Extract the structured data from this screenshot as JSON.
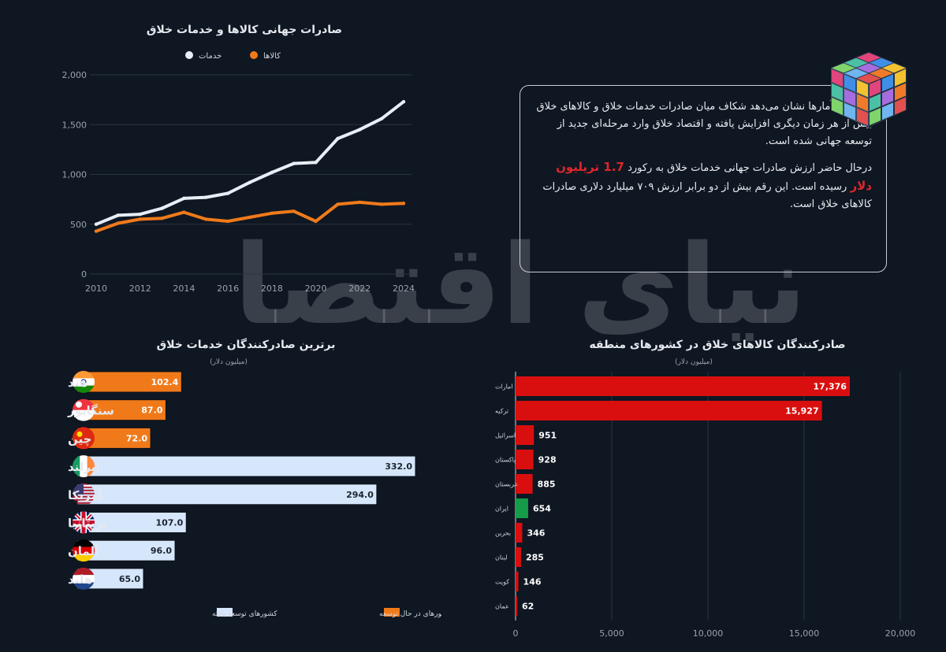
{
  "line_chart": {
    "title": "صادرات جهانی کالاها و خدمات خلاق",
    "legend": [
      {
        "label": "خدمات",
        "color": "#e8eef6"
      },
      {
        "label": "کالاها",
        "color": "#f07a1a"
      }
    ]
  },
  "info": {
    "para1": "تازه‌ترین آمارها نشان می‌دهد شکاف میان صادرات خدمات خلاق و کالاهای خلاق بیش از هر زمان دیگری افزایش یافته و اقتصاد خلاق وارد مرحله‌ای جدید از توسعه جهانی شده است.",
    "para2_a": "درحال حاضر ارزش صادرات جهانی خدمات خلاق به رکورد",
    "para2_highlight": "1.7 تریلیون دلار",
    "para2_b": "رسیده است. این رقم بیش از دو برابر ارزش ۷۰۹ میلیارد دلاری صادرات کالاهای خلاق است."
  },
  "watermark": {
    "text": "دنیای اقتصاد"
  },
  "services_chart": {
    "title": "برترین صادرکنندگان خدمات خلاق",
    "subtitle": "(میلیون دلار)",
    "legend": [
      {
        "label": "کشورهای در حال توسعه",
        "color": "#f07a1a"
      },
      {
        "label": "کشورهای توسعه یافته",
        "color": "#d6e6fb"
      }
    ]
  },
  "goods_chart": {
    "title": "صادرکنندگان کالاهای خلاق در کشورهای منطقه",
    "subtitle": "(میلیون دلار)"
  },
  "colors": {
    "developing": "#f07a1a",
    "developed": "#d6e6fb",
    "red": "#d90f0f",
    "iran": "#169c48",
    "axis": "#9aa3ad",
    "grid": "#2a3442"
  },
  "chart_data": [
    {
      "type": "line",
      "title": "صادرات جهانی کالاها و خدمات خلاق",
      "x": [
        2010,
        2011,
        2012,
        2013,
        2014,
        2015,
        2016,
        2017,
        2018,
        2019,
        2020,
        2021,
        2022,
        2023,
        2024
      ],
      "series": [
        {
          "name": "خدمات",
          "values": [
            500,
            590,
            600,
            660,
            760,
            770,
            810,
            920,
            1020,
            1110,
            1120,
            1360,
            1450,
            1560,
            1730
          ]
        },
        {
          "name": "کالاها",
          "values": [
            430,
            510,
            550,
            560,
            620,
            550,
            530,
            570,
            610,
            630,
            530,
            700,
            720,
            700,
            709
          ]
        }
      ],
      "x_ticks": [
        "2010",
        "2012",
        "2014",
        "2016",
        "2018",
        "2020",
        "2022",
        "2024"
      ],
      "y_ticks": [
        "0",
        "500",
        "1,000",
        "1,500",
        "2,000"
      ],
      "ylim": [
        0,
        2000
      ],
      "grid": true,
      "legend_position": "top"
    },
    {
      "type": "bar",
      "title": "برترین صادرکنندگان خدمات خلاق",
      "subtitle": "(میلیون دلار)",
      "categories": [
        "هند",
        "سنگاپور",
        "چین",
        "ایرلند",
        "آمریکا",
        "بریتانیا",
        "آلمان",
        "هلند"
      ],
      "values": [
        102.4,
        87.0,
        72.0,
        332.0,
        294.0,
        107.0,
        96.0,
        65.0
      ],
      "value_labels": [
        "102.4",
        "87.0",
        "72.0",
        "332.0",
        "294.0",
        "107.0",
        "96.0",
        "65.0"
      ],
      "groups": [
        "developing",
        "developing",
        "developing",
        "developed",
        "developed",
        "developed",
        "developed",
        "developed"
      ],
      "flags": [
        "india",
        "singapore",
        "china",
        "ireland",
        "usa",
        "uk",
        "germany",
        "netherlands"
      ],
      "legend_position": "bottom"
    },
    {
      "type": "bar",
      "title": "صادرکنندگان کالاهای خلاق در کشورهای منطقه",
      "subtitle": "(میلیون دلار)",
      "categories": [
        "امارات",
        "ترکیه",
        "اسرائیل",
        "پاکستان",
        "عربستان",
        "ایران",
        "بحرین",
        "لبنان",
        "کویت",
        "عمان"
      ],
      "values": [
        17376,
        15927,
        951,
        928,
        885,
        654,
        346,
        285,
        146,
        62
      ],
      "value_labels": [
        "17,376",
        "15,927",
        "951",
        "928",
        "885",
        "654",
        "346",
        "285",
        "146",
        "62"
      ],
      "highlight": "ایران",
      "x_ticks": [
        "0",
        "5,000",
        "10,000",
        "15,000",
        "20,000"
      ],
      "xlim": [
        0,
        20000
      ]
    }
  ]
}
